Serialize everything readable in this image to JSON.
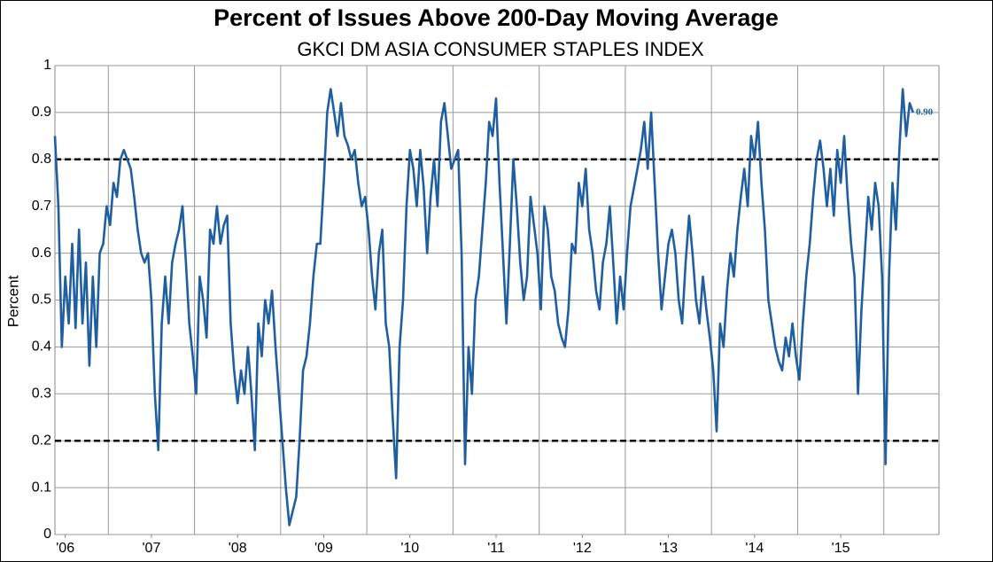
{
  "chart_data": {
    "type": "line",
    "title": "Percent of Issues Above 200-Day Moving Average",
    "subtitle": "GKCI DM ASIA CONSUMER STAPLES INDEX",
    "y_label": "Percent",
    "xlim": [
      2006.38,
      2016.64
    ],
    "ylim": [
      0,
      1
    ],
    "yticks": [
      0,
      0.1,
      0.2,
      0.3,
      0.4,
      0.5,
      0.6,
      0.7,
      0.8,
      0.9,
      1
    ],
    "xticks": [
      {
        "value": 2006.5,
        "label": "'06"
      },
      {
        "value": 2007.5,
        "label": "'07"
      },
      {
        "value": 2008.5,
        "label": "'08"
      },
      {
        "value": 2009.5,
        "label": "'09"
      },
      {
        "value": 2010.5,
        "label": "'10"
      },
      {
        "value": 2011.5,
        "label": "'11"
      },
      {
        "value": 2012.5,
        "label": "'12"
      },
      {
        "value": 2013.5,
        "label": "'13"
      },
      {
        "value": 2014.5,
        "label": "'14"
      },
      {
        "value": 2015.5,
        "label": "'15"
      }
    ],
    "grid": true,
    "reference_lines": [
      0.8,
      0.2
    ],
    "series": [
      {
        "name": "Percent",
        "color": "#1f5f9f",
        "x": [
          2006.38,
          2006.42,
          2006.46,
          2006.5,
          2006.54,
          2006.58,
          2006.62,
          2006.66,
          2006.7,
          2006.74,
          2006.78,
          2006.82,
          2006.86,
          2006.9,
          2006.94,
          2006.98,
          2007.02,
          2007.06,
          2007.1,
          2007.14,
          2007.18,
          2007.22,
          2007.26,
          2007.3,
          2007.34,
          2007.38,
          2007.42,
          2007.46,
          2007.5,
          2007.54,
          2007.58,
          2007.62,
          2007.66,
          2007.7,
          2007.74,
          2007.78,
          2007.82,
          2007.86,
          2007.9,
          2007.94,
          2007.98,
          2008.02,
          2008.06,
          2008.1,
          2008.14,
          2008.18,
          2008.22,
          2008.26,
          2008.3,
          2008.34,
          2008.38,
          2008.42,
          2008.46,
          2008.5,
          2008.54,
          2008.58,
          2008.62,
          2008.66,
          2008.7,
          2008.74,
          2008.78,
          2008.82,
          2008.86,
          2008.9,
          2008.94,
          2008.98,
          2009.02,
          2009.06,
          2009.1,
          2009.14,
          2009.18,
          2009.22,
          2009.26,
          2009.3,
          2009.34,
          2009.38,
          2009.42,
          2009.46,
          2009.5,
          2009.54,
          2009.58,
          2009.62,
          2009.66,
          2009.7,
          2009.74,
          2009.78,
          2009.82,
          2009.86,
          2009.9,
          2009.94,
          2009.98,
          2010.02,
          2010.06,
          2010.1,
          2010.14,
          2010.18,
          2010.22,
          2010.26,
          2010.3,
          2010.34,
          2010.38,
          2010.42,
          2010.46,
          2010.5,
          2010.54,
          2010.58,
          2010.62,
          2010.66,
          2010.7,
          2010.74,
          2010.78,
          2010.82,
          2010.86,
          2010.9,
          2010.94,
          2010.98,
          2011.02,
          2011.06,
          2011.1,
          2011.14,
          2011.18,
          2011.22,
          2011.26,
          2011.3,
          2011.34,
          2011.38,
          2011.42,
          2011.46,
          2011.5,
          2011.54,
          2011.58,
          2011.62,
          2011.66,
          2011.7,
          2011.74,
          2011.78,
          2011.82,
          2011.86,
          2011.9,
          2011.94,
          2011.98,
          2012.02,
          2012.06,
          2012.1,
          2012.14,
          2012.18,
          2012.22,
          2012.26,
          2012.3,
          2012.34,
          2012.38,
          2012.42,
          2012.46,
          2012.5,
          2012.54,
          2012.58,
          2012.62,
          2012.66,
          2012.7,
          2012.74,
          2012.78,
          2012.82,
          2012.86,
          2012.9,
          2012.94,
          2012.98,
          2013.02,
          2013.06,
          2013.1,
          2013.14,
          2013.18,
          2013.22,
          2013.26,
          2013.3,
          2013.34,
          2013.38,
          2013.42,
          2013.46,
          2013.5,
          2013.54,
          2013.58,
          2013.62,
          2013.66,
          2013.7,
          2013.74,
          2013.78,
          2013.82,
          2013.86,
          2013.9,
          2013.94,
          2013.98,
          2014.02,
          2014.06,
          2014.1,
          2014.14,
          2014.18,
          2014.22,
          2014.26,
          2014.3,
          2014.34,
          2014.38,
          2014.42,
          2014.46,
          2014.5,
          2014.54,
          2014.58,
          2014.62,
          2014.66,
          2014.7,
          2014.74,
          2014.78,
          2014.82,
          2014.86,
          2014.9,
          2014.94,
          2014.98,
          2015.02,
          2015.06,
          2015.1,
          2015.14,
          2015.18,
          2015.22,
          2015.26,
          2015.3,
          2015.34,
          2015.38,
          2015.42,
          2015.46,
          2015.5,
          2015.54,
          2015.58,
          2015.62,
          2015.66,
          2015.7,
          2015.74,
          2015.78,
          2015.82,
          2015.86,
          2015.9,
          2015.94,
          2015.98,
          2016.02,
          2016.06,
          2016.1,
          2016.14,
          2016.18,
          2016.22,
          2016.26,
          2016.3,
          2016.34
        ],
        "values": [
          0.85,
          0.7,
          0.4,
          0.55,
          0.45,
          0.62,
          0.44,
          0.65,
          0.45,
          0.58,
          0.36,
          0.55,
          0.4,
          0.6,
          0.62,
          0.7,
          0.66,
          0.75,
          0.72,
          0.8,
          0.82,
          0.8,
          0.78,
          0.72,
          0.65,
          0.6,
          0.58,
          0.6,
          0.5,
          0.3,
          0.18,
          0.45,
          0.55,
          0.45,
          0.58,
          0.62,
          0.65,
          0.7,
          0.58,
          0.45,
          0.38,
          0.3,
          0.55,
          0.5,
          0.42,
          0.65,
          0.62,
          0.7,
          0.62,
          0.66,
          0.68,
          0.45,
          0.35,
          0.28,
          0.35,
          0.3,
          0.4,
          0.3,
          0.18,
          0.45,
          0.38,
          0.5,
          0.45,
          0.52,
          0.4,
          0.3,
          0.2,
          0.1,
          0.02,
          0.05,
          0.08,
          0.2,
          0.35,
          0.38,
          0.45,
          0.55,
          0.62,
          0.62,
          0.75,
          0.9,
          0.95,
          0.9,
          0.85,
          0.92,
          0.85,
          0.83,
          0.8,
          0.82,
          0.75,
          0.7,
          0.72,
          0.65,
          0.55,
          0.48,
          0.6,
          0.65,
          0.45,
          0.4,
          0.25,
          0.12,
          0.4,
          0.5,
          0.7,
          0.82,
          0.78,
          0.7,
          0.82,
          0.74,
          0.6,
          0.72,
          0.8,
          0.7,
          0.88,
          0.92,
          0.85,
          0.78,
          0.8,
          0.82,
          0.6,
          0.15,
          0.4,
          0.3,
          0.5,
          0.55,
          0.65,
          0.75,
          0.88,
          0.85,
          0.93,
          0.75,
          0.6,
          0.45,
          0.62,
          0.8,
          0.7,
          0.58,
          0.5,
          0.55,
          0.72,
          0.66,
          0.6,
          0.48,
          0.7,
          0.65,
          0.55,
          0.52,
          0.45,
          0.42,
          0.4,
          0.48,
          0.62,
          0.6,
          0.75,
          0.7,
          0.78,
          0.65,
          0.6,
          0.52,
          0.48,
          0.58,
          0.62,
          0.7,
          0.58,
          0.45,
          0.55,
          0.48,
          0.6,
          0.7,
          0.74,
          0.78,
          0.82,
          0.88,
          0.78,
          0.9,
          0.75,
          0.6,
          0.48,
          0.55,
          0.62,
          0.65,
          0.6,
          0.5,
          0.45,
          0.58,
          0.68,
          0.6,
          0.5,
          0.45,
          0.55,
          0.48,
          0.42,
          0.35,
          0.22,
          0.45,
          0.4,
          0.52,
          0.6,
          0.55,
          0.65,
          0.72,
          0.78,
          0.7,
          0.85,
          0.8,
          0.88,
          0.75,
          0.65,
          0.5,
          0.45,
          0.4,
          0.37,
          0.35,
          0.42,
          0.38,
          0.45,
          0.38,
          0.33,
          0.45,
          0.55,
          0.62,
          0.72,
          0.8,
          0.84,
          0.78,
          0.7,
          0.78,
          0.68,
          0.82,
          0.75,
          0.85,
          0.72,
          0.62,
          0.55,
          0.3,
          0.48,
          0.6,
          0.72,
          0.65,
          0.75,
          0.7,
          0.55,
          0.15,
          0.55,
          0.75,
          0.65,
          0.82,
          0.95,
          0.85,
          0.92,
          0.9
        ]
      }
    ],
    "end_label": {
      "value": 0.9,
      "label": "0.90"
    }
  }
}
